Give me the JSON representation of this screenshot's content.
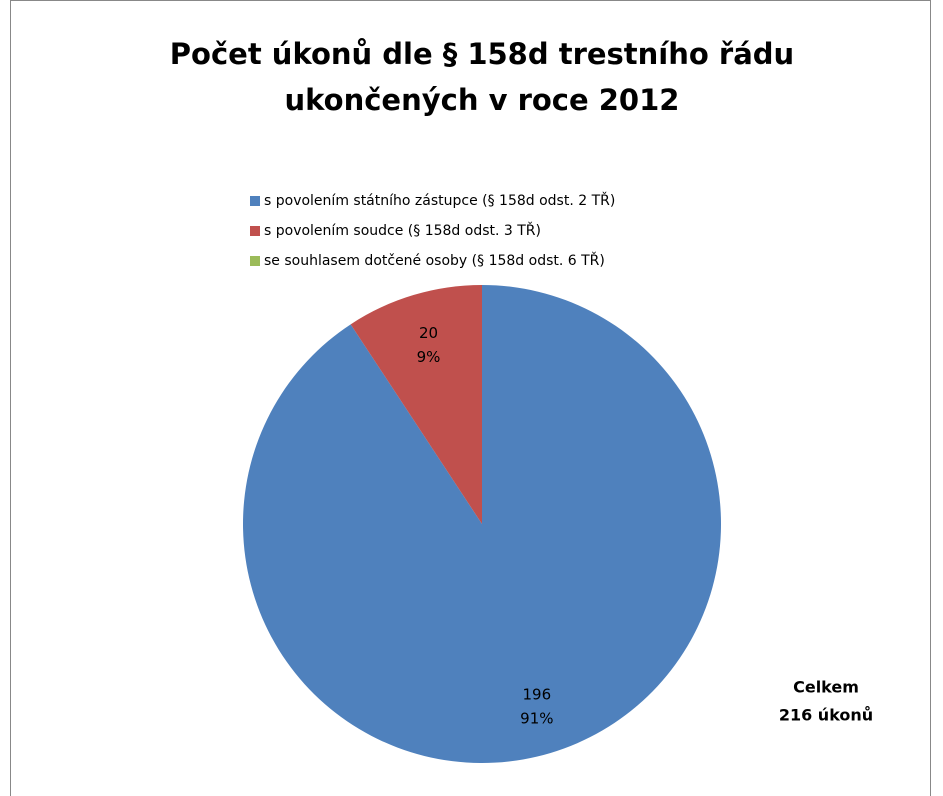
{
  "chart_data": {
    "type": "pie",
    "title": [
      "Počet úkonů dle § 158d trestního řádu",
      "ukončených v roce 2012"
    ],
    "categories": [
      "s povolením státního zástupce (§ 158d odst. 2 TŘ)",
      "s povolením soudce (§ 158d odst. 3 TŘ)",
      "se souhlasem dotčené osoby (§ 158d odst. 6 TŘ)"
    ],
    "values": [
      196,
      20,
      0
    ],
    "percent_labels": [
      "91%",
      "9%",
      null
    ],
    "colors": [
      "#4f81bd",
      "#c0504d",
      "#9bbb59"
    ],
    "annotation": [
      "Celkem",
      "216 úkonů"
    ],
    "legend": "top"
  }
}
